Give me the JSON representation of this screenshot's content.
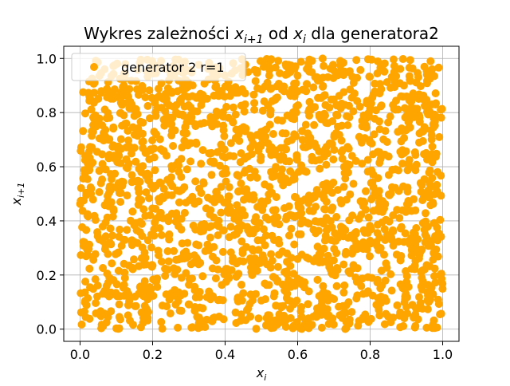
{
  "chart_data": {
    "type": "scatter",
    "title_prefix": "Wykres zależności ",
    "title_var1": "x",
    "title_var1_sub": "i+1",
    "title_mid": " od ",
    "title_var2": "x",
    "title_var2_sub": "i",
    "title_suffix": " dla generatora2",
    "xlabel": "x",
    "xlabel_sub": "i",
    "ylabel": "x",
    "ylabel_sub": "i+1",
    "xlim": [
      -0.045,
      1.045
    ],
    "ylim": [
      -0.045,
      1.045
    ],
    "x_ticks": [
      0.0,
      0.2,
      0.4,
      0.6,
      0.8,
      1.0
    ],
    "x_tick_labels": [
      "0.0",
      "0.2",
      "0.4",
      "0.6",
      "0.8",
      "1.0"
    ],
    "y_ticks": [
      0.0,
      0.2,
      0.4,
      0.6,
      0.8,
      1.0
    ],
    "y_tick_labels": [
      "0.0",
      "0.2",
      "0.4",
      "0.6",
      "0.8",
      "1.0"
    ],
    "grid": true,
    "legend_position": "upper-left",
    "series": [
      {
        "name": "generator 2 r=1",
        "color": "#ffa500",
        "point_count": 2000,
        "x_range": [
          0.0,
          1.0
        ],
        "y_range": [
          0.0,
          1.0
        ],
        "x": [
          0.04,
          0.12,
          0.21,
          0.33,
          0.47,
          0.58,
          0.66,
          0.75,
          0.83,
          0.92,
          0.98,
          0.02,
          0.15,
          0.28,
          0.39,
          0.51,
          0.63,
          0.71,
          0.87,
          0.95
        ],
        "y": [
          0.91,
          0.33,
          0.72,
          0.08,
          0.56,
          0.95,
          0.27,
          0.64,
          0.12,
          0.48,
          0.83,
          0.42,
          0.67,
          0.19,
          0.88,
          0.31,
          0.04,
          0.79,
          0.59,
          0.22
        ]
      }
    ]
  }
}
